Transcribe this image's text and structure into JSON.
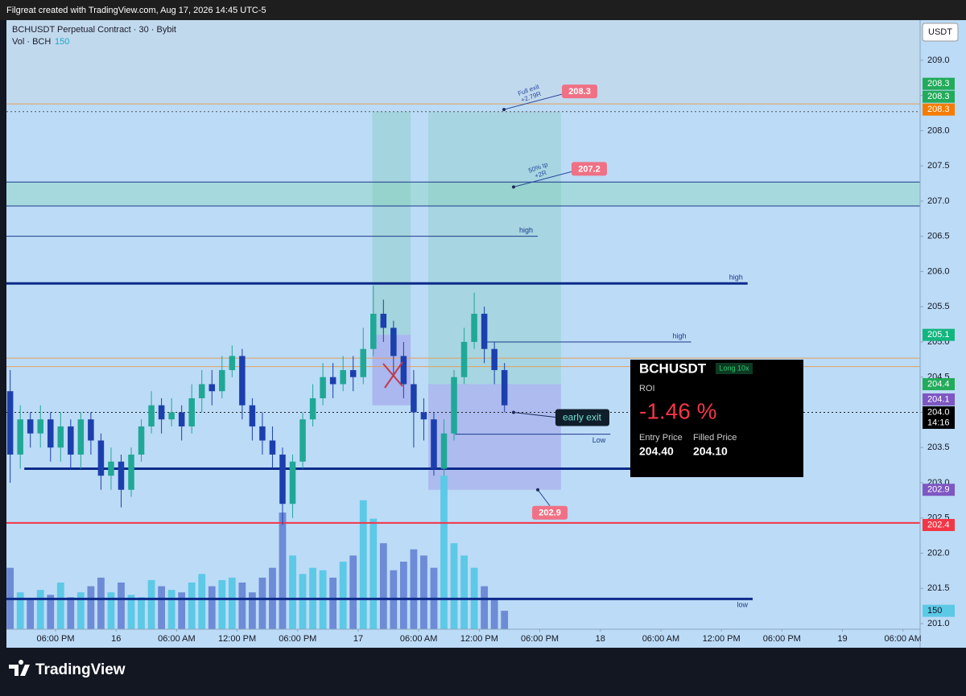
{
  "header": {
    "title": "Filgreat created with TradingView.com, Aug 17, 2026 14:45 UTC-5"
  },
  "chart_data": {
    "type": "candlestick",
    "title": "BCHUSDT Perpetual Contract · 30 · Bybit",
    "currency": "USDT",
    "x": [
      -4.5,
      -3.5,
      -2.5,
      -1.5,
      -0.5,
      0.5,
      1.5,
      2.5,
      3.5,
      4.5,
      5.5,
      6.5,
      7.5,
      8.5,
      9.5,
      10.5,
      11.5,
      12.5,
      13.5,
      14.5,
      15.5,
      16.5,
      17.5,
      18.5,
      19.5,
      20.5,
      21.5,
      22.5,
      23.5,
      24.5,
      25.5,
      26.5,
      27.5,
      28.5,
      29.5,
      30.5,
      31.5,
      32.5,
      33.5,
      34.5,
      35.5,
      36.5,
      37.5,
      38.5,
      39.5,
      40.5,
      41.5,
      42.5,
      43.5,
      44.5
    ],
    "open": [
      204.3,
      203.4,
      203.9,
      203.7,
      203.9,
      203.5,
      203.8,
      203.4,
      203.9,
      203.6,
      203.1,
      203.3,
      202.9,
      203.4,
      203.8,
      204.1,
      203.9,
      204.0,
      203.8,
      204.2,
      204.4,
      204.3,
      204.6,
      204.8,
      204.1,
      203.8,
      203.6,
      203.4,
      202.7,
      203.3,
      203.9,
      204.2,
      204.5,
      204.4,
      204.6,
      204.5,
      204.9,
      205.4,
      205.2,
      204.8,
      204.4,
      204.0,
      203.9,
      203.2,
      203.7,
      204.5,
      205.0,
      205.4,
      204.9,
      204.6
    ],
    "high": [
      204.6,
      204.1,
      204.0,
      204.1,
      204.0,
      204.0,
      203.9,
      204.0,
      204.0,
      203.7,
      203.5,
      203.4,
      203.5,
      203.9,
      204.3,
      204.2,
      204.2,
      204.1,
      204.4,
      204.6,
      204.6,
      204.8,
      204.95,
      204.9,
      204.2,
      204.0,
      203.8,
      203.5,
      203.4,
      204.0,
      204.4,
      204.7,
      204.7,
      204.8,
      204.8,
      205.2,
      205.8,
      205.6,
      205.3,
      205.0,
      204.6,
      204.2,
      204.0,
      203.9,
      204.6,
      205.2,
      205.7,
      205.5,
      205.0,
      204.7
    ],
    "low": [
      203.0,
      203.2,
      203.5,
      203.5,
      203.3,
      203.3,
      203.2,
      203.2,
      203.4,
      202.9,
      202.9,
      202.65,
      202.8,
      203.3,
      203.7,
      203.7,
      203.8,
      203.6,
      203.7,
      204.0,
      204.1,
      204.2,
      204.5,
      203.9,
      203.6,
      203.4,
      203.2,
      202.4,
      202.5,
      203.2,
      203.8,
      204.1,
      204.2,
      204.3,
      204.3,
      204.4,
      204.8,
      205.0,
      204.5,
      204.2,
      203.5,
      203.6,
      203.1,
      203.1,
      203.6,
      204.4,
      204.9,
      204.7,
      204.4,
      204.0
    ],
    "close": [
      203.4,
      203.9,
      203.7,
      203.9,
      203.5,
      203.8,
      203.4,
      203.9,
      203.6,
      203.1,
      203.3,
      202.9,
      203.4,
      203.8,
      204.1,
      203.9,
      204.0,
      203.8,
      204.2,
      204.4,
      204.3,
      204.6,
      204.8,
      204.1,
      203.8,
      203.6,
      203.4,
      202.7,
      203.3,
      203.9,
      204.2,
      204.5,
      204.4,
      204.6,
      204.5,
      204.9,
      205.4,
      205.2,
      204.8,
      204.4,
      204.0,
      203.9,
      203.2,
      203.7,
      204.5,
      205.0,
      205.4,
      204.9,
      204.6,
      204.1
    ],
    "up_color": "#1fa896",
    "down_color": "#1c3fae",
    "volume": {
      "name": "Vol · BCH",
      "ylim": [
        0,
        1500
      ],
      "up_color": "#5cc9e6",
      "down_color": "#6d8bd6",
      "values": [
        500,
        300,
        250,
        320,
        280,
        380,
        260,
        300,
        350,
        420,
        300,
        380,
        280,
        260,
        400,
        350,
        320,
        300,
        380,
        450,
        350,
        400,
        420,
        380,
        300,
        420,
        500,
        950,
        600,
        450,
        500,
        480,
        420,
        550,
        600,
        1050,
        900,
        700,
        480,
        550,
        650,
        600,
        500,
        1250,
        700,
        600,
        500,
        350,
        250,
        150
      ]
    },
    "xlim": [
      -4.87,
      85.7
    ],
    "xticks": [
      {
        "value": 0,
        "label": "06:00 PM"
      },
      {
        "value": 6,
        "label": "16"
      },
      {
        "value": 12,
        "label": "06:00 AM"
      },
      {
        "value": 18,
        "label": "12:00 PM"
      },
      {
        "value": 24,
        "label": "06:00 PM"
      },
      {
        "value": 30,
        "label": "17"
      },
      {
        "value": 36,
        "label": "06:00 AM"
      },
      {
        "value": 42,
        "label": "12:00 PM"
      },
      {
        "value": 48,
        "label": "06:00 PM"
      },
      {
        "value": 54,
        "label": "18"
      },
      {
        "value": 60,
        "label": "06:00 AM"
      },
      {
        "value": 66,
        "label": "12:00 PM"
      },
      {
        "value": 72,
        "label": "06:00 PM"
      },
      {
        "value": 78,
        "label": "19"
      },
      {
        "value": 84,
        "label": "06:00 AM"
      }
    ],
    "ylim": [
      200.92,
      209.57
    ],
    "yticks": [
      {
        "value": 201,
        "label": "201.0"
      },
      201.5,
      {
        "value": 202,
        "label": "202.0"
      },
      202.5,
      {
        "value": 203,
        "label": "203.0"
      },
      203.5,
      {
        "value": 204,
        "label": "204.0"
      },
      204.5,
      {
        "value": 205,
        "label": "205.0"
      },
      205.5,
      {
        "value": 206,
        "label": "206.0"
      },
      206.5,
      {
        "value": 207,
        "label": "207.0"
      },
      207.5,
      {
        "value": 208,
        "label": "208.0"
      },
      208.5,
      {
        "value": 209,
        "label": "209.0"
      }
    ],
    "zones": [
      {
        "from": -4.87,
        "to": 85.7,
        "top": 207.27,
        "bottom": 206.93,
        "color": "rgba(140,215,190,0.45)"
      },
      {
        "from": 31.4,
        "to": 35.2,
        "top": 208.27,
        "bottom": 205.1,
        "color": "rgba(120,200,175,0.35)"
      },
      {
        "from": 36.95,
        "to": 50.1,
        "top": 208.27,
        "bottom": 204.4,
        "color": "rgba(120,200,175,0.3)"
      },
      {
        "from": 31.4,
        "to": 35.2,
        "top": 205.1,
        "bottom": 204.1,
        "color": "rgba(150,140,230,0.45)"
      },
      {
        "from": 36.95,
        "to": 50.1,
        "top": 204.4,
        "bottom": 202.9,
        "color": "rgba(150,140,230,0.4)"
      }
    ],
    "lines": [
      {
        "value": 208.38,
        "color": "#e0a060",
        "width": 1
      },
      {
        "value": 208.27,
        "color": "#555",
        "width": 1,
        "dash": true
      },
      {
        "value": 207.27,
        "color": "#1c3a8a",
        "width": 1
      },
      {
        "value": 206.93,
        "color": "#1c3a8a",
        "width": 1
      },
      {
        "value": 206.5,
        "color": "#1c3a8a",
        "width": 1,
        "to": 47.8,
        "label": "high"
      },
      {
        "value": 205.83,
        "color": "#0d2a8a",
        "width": 3,
        "to": 68.6,
        "label": "high"
      },
      {
        "value": 204.77,
        "color": "#e0a060",
        "width": 1
      },
      {
        "value": 204.65,
        "color": "#e0a060",
        "width": 1
      },
      {
        "value": 205.0,
        "color": "#1c3a8a",
        "width": 1,
        "from": 42.8,
        "to": 63.0,
        "label": "high"
      },
      {
        "value": 203.69,
        "color": "#1c3a8a",
        "width": 1,
        "from": 39.6,
        "to": 55.0,
        "label": "Low",
        "label_below": true
      },
      {
        "value": 203.2,
        "color": "#0d2a8a",
        "width": 3,
        "from": -3.1,
        "to": 57.5
      },
      {
        "value": 202.43,
        "color": "#f23645",
        "width": 2
      },
      {
        "value": 201.35,
        "color": "#0d2a8a",
        "width": 3,
        "to": 69.1,
        "label": "low",
        "label_below": true
      },
      {
        "value": 204.0,
        "color": "#222",
        "width": 1,
        "dash": true
      }
    ],
    "callouts": [
      {
        "lines": [
          "Full exit",
          "+2.79R"
        ],
        "x": 44.45,
        "value": 208.3
      },
      {
        "lines": [
          "50% tp",
          "+2R"
        ],
        "x": 45.4,
        "value": 207.2
      },
      {
        "x": 47.8,
        "value": 202.9,
        "badge_below": true
      }
    ],
    "early_exit": {
      "text": "early exit",
      "x": 45.4,
      "value": 204.0
    },
    "axis_badges": [
      {
        "value": 208.3,
        "color": "#22ab5a"
      },
      {
        "value": 208.3,
        "color": "#22ab5a"
      },
      {
        "value": 208.3,
        "color": "#f57c00"
      },
      {
        "value": 205.1,
        "color": "#13b57f"
      },
      {
        "value": 204.4,
        "color": "#22ab5a"
      },
      {
        "value": 204.1,
        "color": "#7e57c2"
      },
      {
        "value": 204,
        "label": "204.0",
        "countdown": "14:16",
        "color": "#000000"
      },
      {
        "value": 202.9,
        "color": "#7e57c2"
      },
      {
        "value": 202.4,
        "color": "#f23645"
      }
    ]
  },
  "position_panel": {
    "symbol": "BCHUSDT",
    "side": "Long 10x",
    "roi_label": "ROI",
    "roi": "-1.46 %",
    "entry_label": "Entry Price",
    "entry": "204.40",
    "filled_label": "Filled Price",
    "filled": "204.10"
  },
  "footer": {
    "brand": "TradingView"
  }
}
